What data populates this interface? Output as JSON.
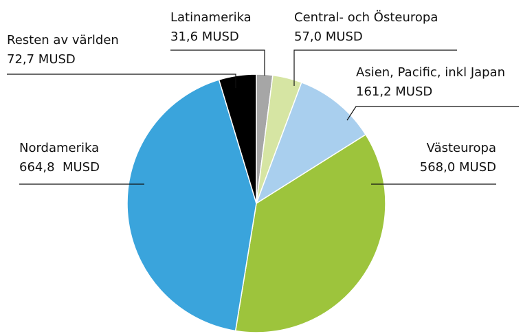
{
  "chart_data": {
    "type": "pie",
    "categories": [
      "Latinamerika",
      "Central- och Östeuropa",
      "Asien, Pacific, inkl Japan",
      "Västeuropa",
      "Nordamerika",
      "Resten av världen"
    ],
    "values": [
      31.6,
      57.0,
      161.2,
      568.0,
      664.8,
      72.7
    ],
    "value_labels": [
      "31,6 MUSD",
      "57,0 MUSD",
      "161,2 MUSD",
      "568,0 MUSD",
      "664,8  MUSD",
      "72,7 MUSD"
    ],
    "colors": [
      "#a6a6a6",
      "#d6e5a3",
      "#a9cfee",
      "#9dc43c",
      "#3aa4dc",
      "#000000"
    ]
  }
}
